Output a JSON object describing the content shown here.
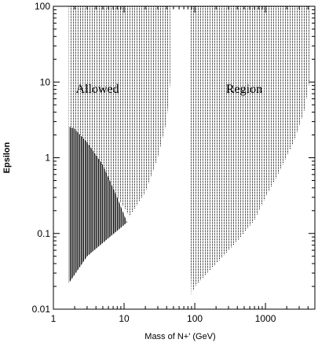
{
  "chart_data": {
    "type": "area",
    "title": "",
    "xlabel": "Mass of N+' (GeV)",
    "ylabel": "Epsilon",
    "x_scale": "log",
    "y_scale": "log",
    "xlim": [
      1,
      5000
    ],
    "ylim": [
      0.01,
      100
    ],
    "x_ticks": [
      {
        "value": 1,
        "label": "1"
      },
      {
        "value": 10,
        "label": "10"
      },
      {
        "value": 100,
        "label": "100"
      },
      {
        "value": 1000,
        "label": "1000"
      }
    ],
    "y_ticks": [
      {
        "value": 0.01,
        "label": "0.01"
      },
      {
        "value": 0.1,
        "label": "0.1"
      },
      {
        "value": 1,
        "label": "1"
      },
      {
        "value": 10,
        "label": "10"
      },
      {
        "value": 100,
        "label": "100"
      }
    ],
    "annotations": [
      {
        "text": "Allowed",
        "x": 4.2,
        "y": 7.2
      },
      {
        "text": "Region",
        "x": 500,
        "y": 7.2
      }
    ],
    "regions": [
      {
        "id": "left-dotted",
        "style": "dotted",
        "boundary": [
          [
            1.65,
            2.6
          ],
          [
            2,
            2.4
          ],
          [
            3,
            1.6
          ],
          [
            5,
            0.75
          ],
          [
            8,
            0.3
          ],
          [
            12,
            0.17
          ],
          [
            20,
            0.35
          ],
          [
            30,
            1.0
          ],
          [
            40,
            3.0
          ],
          [
            45,
            10
          ],
          [
            45,
            100
          ],
          [
            1.65,
            100
          ]
        ]
      },
      {
        "id": "left-solid",
        "style": "solid",
        "boundary": [
          [
            1.65,
            0.022
          ],
          [
            1.65,
            2.6
          ],
          [
            2,
            2.4
          ],
          [
            3,
            1.6
          ],
          [
            5,
            0.8
          ],
          [
            8,
            0.3
          ],
          [
            11,
            0.14
          ],
          [
            3,
            0.05
          ],
          [
            1.65,
            0.022
          ]
        ]
      },
      {
        "id": "right-dotted",
        "style": "dotted",
        "boundary": [
          [
            85,
            100
          ],
          [
            85,
            0.08
          ],
          [
            90,
            0.015
          ],
          [
            100,
            0.02
          ],
          [
            200,
            0.04
          ],
          [
            400,
            0.08
          ],
          [
            700,
            0.15
          ],
          [
            1000,
            0.3
          ],
          [
            1500,
            0.6
          ],
          [
            2500,
            1.6
          ],
          [
            3500,
            4
          ],
          [
            4200,
            10
          ],
          [
            4200,
            100
          ]
        ]
      }
    ]
  }
}
